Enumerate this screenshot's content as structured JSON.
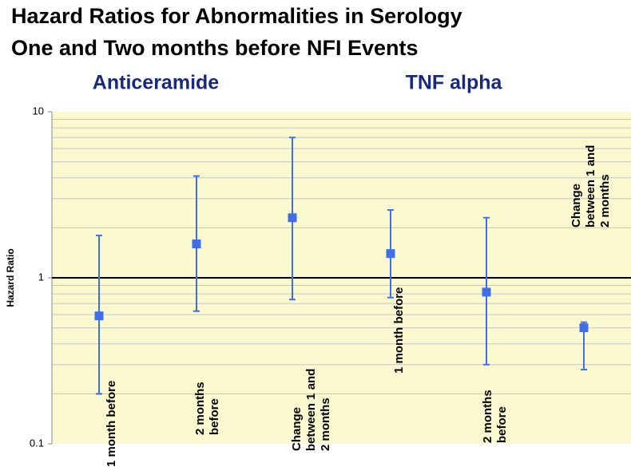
{
  "chart_data": {
    "type": "errorbar",
    "title": "Hazard Ratios for Abnormalities in Serology",
    "subtitle": "One and Two months before NFI Events",
    "groups": [
      "Anticeramide",
      "TNF alpha"
    ],
    "y_label": "Hazard Ratio",
    "categories": [
      "1 month before",
      "2 months before",
      "Change between 1 and 2 months",
      "1 month before",
      "2 months before",
      "Change between 1 and 2 months"
    ],
    "values": [
      0.59,
      1.6,
      2.3,
      1.4,
      0.82,
      0.5
    ],
    "lower": [
      0.2,
      0.63,
      0.74,
      0.76,
      0.3,
      0.28
    ],
    "upper": [
      1.8,
      4.1,
      7.0,
      2.56,
      2.3,
      0.54
    ],
    "color": "#3f6ee8",
    "log_scale": true,
    "ylim": [
      0.1,
      10
    ],
    "yticks": [
      0.1,
      1,
      10
    ],
    "minor_grid": [
      0.2,
      0.3,
      0.4,
      0.5,
      0.6,
      0.7,
      0.8,
      0.9,
      2,
      3,
      4,
      5,
      6,
      7,
      8,
      9
    ],
    "reference_line": 1,
    "grid": true
  }
}
